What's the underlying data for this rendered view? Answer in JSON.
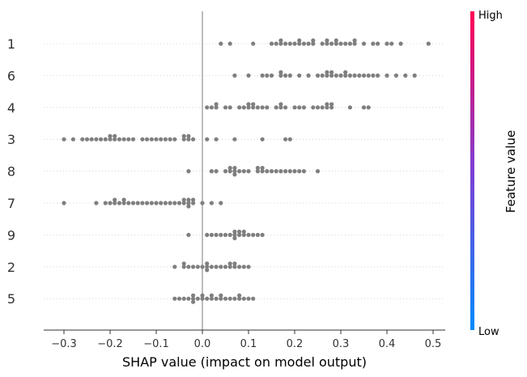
{
  "chart_data": {
    "type": "scatter",
    "subtype": "shap-beeswarm",
    "title": "",
    "xlabel": "SHAP value (impact on model output)",
    "xlim": [
      -0.345,
      0.525
    ],
    "xticks": [
      {
        "value": -0.3,
        "label": "−0.3"
      },
      {
        "value": -0.2,
        "label": "−0.2"
      },
      {
        "value": -0.1,
        "label": "−0.1"
      },
      {
        "value": 0.0,
        "label": "0.0"
      },
      {
        "value": 0.1,
        "label": "0.1"
      },
      {
        "value": 0.2,
        "label": "0.2"
      },
      {
        "value": 0.3,
        "label": "0.3"
      },
      {
        "value": 0.4,
        "label": "0.4"
      },
      {
        "value": 0.5,
        "label": "0.5"
      }
    ],
    "point_color": "#7f7f7f",
    "zero_line": true,
    "grid": false,
    "features": [
      {
        "name": "1",
        "values": [
          0.04,
          0.06,
          0.11,
          0.15,
          0.16,
          0.17,
          0.18,
          0.19,
          0.21,
          0.22,
          0.23,
          0.24,
          0.26,
          0.27,
          0.28,
          0.29,
          0.3,
          0.31,
          0.32,
          0.33,
          0.35,
          0.37,
          0.38,
          0.4,
          0.41,
          0.43,
          0.49,
          0.17,
          0.21,
          0.27,
          0.29,
          0.33,
          0.2,
          0.24
        ]
      },
      {
        "name": "6",
        "values": [
          0.07,
          0.1,
          0.13,
          0.14,
          0.15,
          0.17,
          0.18,
          0.19,
          0.21,
          0.23,
          0.25,
          0.26,
          0.27,
          0.28,
          0.29,
          0.3,
          0.31,
          0.32,
          0.33,
          0.34,
          0.35,
          0.36,
          0.37,
          0.38,
          0.4,
          0.42,
          0.44,
          0.46,
          0.17,
          0.27,
          0.31,
          0.28
        ]
      },
      {
        "name": "4",
        "values": [
          0.01,
          0.02,
          0.03,
          0.05,
          0.06,
          0.08,
          0.09,
          0.1,
          0.11,
          0.12,
          0.13,
          0.14,
          0.16,
          0.17,
          0.18,
          0.2,
          0.21,
          0.22,
          0.24,
          0.25,
          0.26,
          0.27,
          0.28,
          0.32,
          0.35,
          0.36,
          0.03,
          0.11,
          0.17,
          0.27,
          0.1,
          0.28
        ]
      },
      {
        "name": "3",
        "values": [
          -0.3,
          -0.28,
          -0.26,
          -0.25,
          -0.24,
          -0.23,
          -0.22,
          -0.21,
          -0.2,
          -0.19,
          -0.18,
          -0.17,
          -0.16,
          -0.15,
          -0.13,
          -0.12,
          -0.11,
          -0.1,
          -0.09,
          -0.08,
          -0.07,
          -0.06,
          -0.04,
          -0.03,
          -0.02,
          0.01,
          0.03,
          0.07,
          0.13,
          0.18,
          0.19,
          -0.19,
          -0.2,
          -0.03,
          -0.04
        ]
      },
      {
        "name": "8",
        "values": [
          -0.03,
          0.02,
          0.03,
          0.05,
          0.06,
          0.07,
          0.08,
          0.09,
          0.1,
          0.12,
          0.13,
          0.14,
          0.15,
          0.16,
          0.17,
          0.18,
          0.19,
          0.2,
          0.21,
          0.22,
          0.25,
          0.06,
          0.07,
          0.12,
          0.13,
          0.07
        ]
      },
      {
        "name": "7",
        "values": [
          -0.3,
          -0.23,
          -0.21,
          -0.2,
          -0.19,
          -0.18,
          -0.17,
          -0.16,
          -0.15,
          -0.14,
          -0.13,
          -0.12,
          -0.11,
          -0.1,
          -0.09,
          -0.08,
          -0.07,
          -0.06,
          -0.05,
          -0.04,
          -0.03,
          -0.02,
          0.0,
          0.02,
          0.04,
          -0.19,
          -0.17,
          -0.03,
          -0.04,
          -0.02,
          -0.03
        ]
      },
      {
        "name": "9",
        "values": [
          -0.03,
          0.01,
          0.02,
          0.03,
          0.04,
          0.05,
          0.06,
          0.07,
          0.08,
          0.09,
          0.1,
          0.11,
          0.12,
          0.13,
          0.07,
          0.08,
          0.09,
          0.07
        ]
      },
      {
        "name": "2",
        "values": [
          -0.06,
          -0.04,
          -0.03,
          -0.02,
          -0.01,
          0.0,
          0.01,
          0.02,
          0.03,
          0.04,
          0.05,
          0.06,
          0.07,
          0.08,
          0.09,
          0.1,
          -0.04,
          0.01,
          0.07,
          0.06,
          0.01
        ]
      },
      {
        "name": "5",
        "values": [
          -0.06,
          -0.05,
          -0.04,
          -0.03,
          -0.02,
          -0.01,
          0.0,
          0.01,
          0.02,
          0.03,
          0.04,
          0.05,
          0.06,
          0.07,
          0.08,
          0.09,
          0.1,
          0.11,
          -0.02,
          0.02,
          0.08,
          0.04,
          -0.02,
          0.0
        ]
      }
    ],
    "colorbar": {
      "label": "Feature value",
      "high_label": "High",
      "low_label": "Low",
      "low_color": "#008bfb",
      "mid_color": "#7e3fd3",
      "high_color": "#ff0052"
    }
  }
}
